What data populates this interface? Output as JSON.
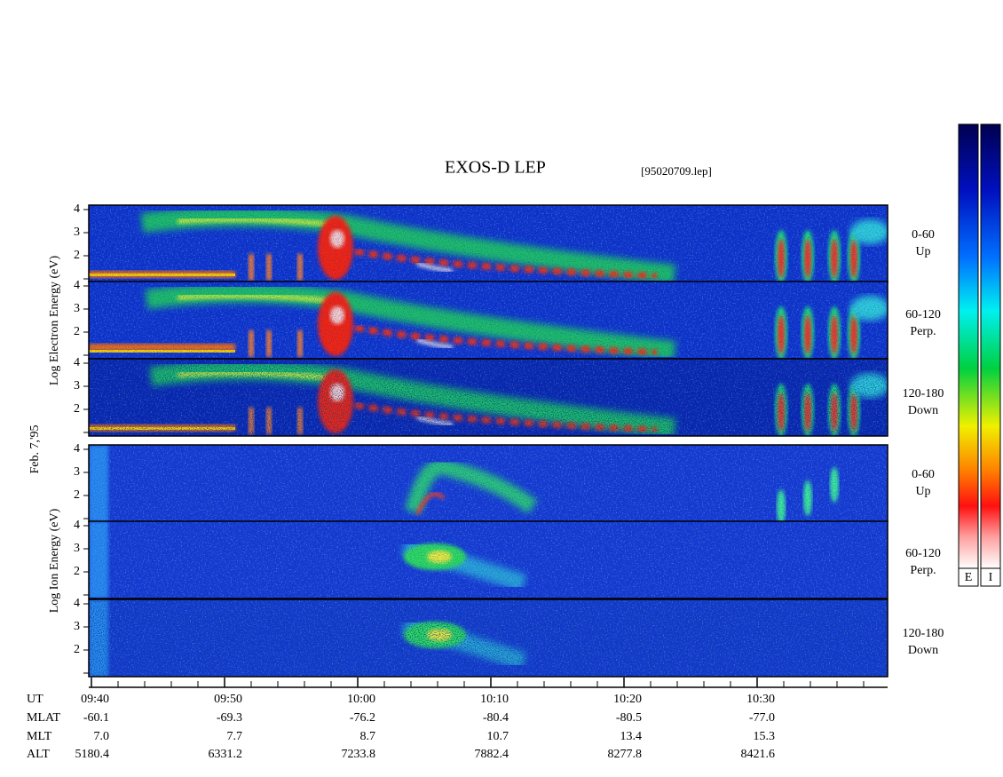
{
  "title": "EXOS-D LEP",
  "file": "[95020709.lep]",
  "date_label": "Feb. 7,'95",
  "yticks": [
    2,
    3,
    4
  ],
  "groups": [
    {
      "label": "Log  Electron  Energy  (eV)",
      "panels": [
        {
          "range": "0-60",
          "direction": "Up"
        },
        {
          "range": "60-120",
          "direction": "Perp."
        },
        {
          "range": "120-180",
          "direction": "Down"
        }
      ]
    },
    {
      "label": "Log  Ion  Energy  (eV)",
      "panels": [
        {
          "range": "0-60",
          "direction": "Up"
        },
        {
          "range": "60-120",
          "direction": "Perp."
        },
        {
          "range": "120-180",
          "direction": "Down"
        }
      ]
    }
  ],
  "time_axis": {
    "row_labels": [
      "UT",
      "MLAT",
      "MLT",
      "ALT"
    ],
    "columns": [
      [
        "09:40",
        "-60.1",
        "7.0",
        "5180.4"
      ],
      [
        "09:50",
        "-69.3",
        "7.7",
        "6331.2"
      ],
      [
        "10:00",
        "-76.2",
        "8.7",
        "7233.8"
      ],
      [
        "10:10",
        "-80.4",
        "10.7",
        "7882.4"
      ],
      [
        "10:20",
        "-80.5",
        "13.4",
        "8277.8"
      ],
      [
        "10:30",
        "-77.0",
        "15.3",
        "8421.6"
      ]
    ]
  },
  "colorbar_labels": [
    "E",
    "I"
  ]
}
